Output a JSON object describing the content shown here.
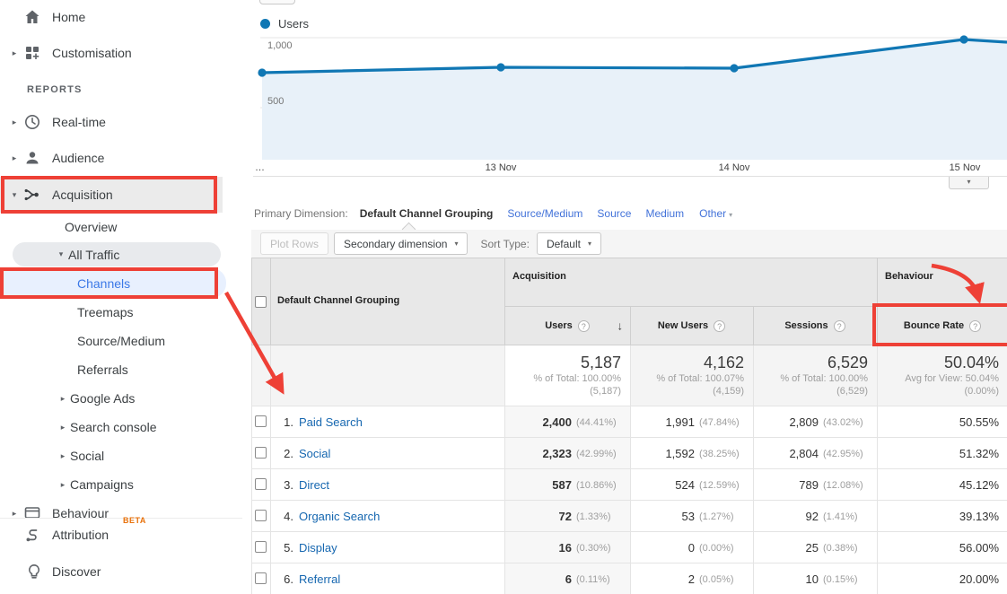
{
  "colors": {
    "annotation_red": "#ee4036",
    "chart_line_blue": "#1077b4",
    "chart_fill_blue": "#e8f1f9",
    "link_blue": "#4272d9",
    "table_link_blue": "#1667b0",
    "sidebar_selected_blue": "#3b78e7",
    "beta_orange": "#e8710a"
  },
  "icons": {
    "caret_right": "▸",
    "caret_down": "▾",
    "dropdown_caret": "▾",
    "sort_desc": "↓",
    "help": "?"
  },
  "sidebar": {
    "reports_label": "REPORTS",
    "beta_label": "BETA",
    "items": [
      {
        "label": "Home",
        "icon": "home-icon"
      },
      {
        "label": "Customisation",
        "icon": "customisation-icon"
      },
      {
        "label": "Real-time",
        "icon": "realtime-icon"
      },
      {
        "label": "Audience",
        "icon": "audience-icon"
      },
      {
        "label": "Acquisition",
        "icon": "acquisition-icon",
        "selected": true,
        "expanded": true
      },
      {
        "label": "Overview"
      },
      {
        "label": "All Traffic",
        "expanded": true
      },
      {
        "label": "Channels",
        "selected": true
      },
      {
        "label": "Treemaps"
      },
      {
        "label": "Source/Medium"
      },
      {
        "label": "Referrals"
      },
      {
        "label": "Google Ads"
      },
      {
        "label": "Search console"
      },
      {
        "label": "Social"
      },
      {
        "label": "Campaigns"
      },
      {
        "label": "Behaviour",
        "icon": "behaviour-icon"
      },
      {
        "label": "Attribution",
        "icon": "attribution-icon",
        "badge": "BETA"
      },
      {
        "label": "Discover",
        "icon": "discover-icon"
      }
    ]
  },
  "chart": {
    "legend": "Users",
    "y_ticks": [
      "1,000",
      "500"
    ],
    "x_ticks": [
      "…",
      "13 Nov",
      "14 Nov",
      "15 Nov"
    ]
  },
  "chart_data": {
    "type": "line",
    "title": "Users",
    "series": [
      {
        "name": "Users",
        "x": [
          "…",
          "13 Nov",
          "14 Nov",
          "15 Nov"
        ],
        "values": [
          750,
          790,
          780,
          990
        ]
      }
    ],
    "ylim": [
      380,
      1080
    ],
    "yticks": [
      500,
      1000
    ],
    "grid": true,
    "legend_position": "top-left",
    "notes": "values estimated from gridlines at 500 and 1,000; line continues past 15 Nov to plot edge at ~975"
  },
  "primary_dimension": {
    "label": "Primary Dimension:",
    "selected": "Default Channel Grouping",
    "options": [
      "Source/Medium",
      "Source",
      "Medium"
    ],
    "other_label": "Other"
  },
  "toolbar": {
    "plot_rows": "Plot Rows",
    "secondary_dimension": "Secondary dimension",
    "sort_type_label": "Sort Type:",
    "sort_default": "Default"
  },
  "table": {
    "dimension_header": "Default Channel Grouping",
    "group_acquisition": "Acquisition",
    "group_behaviour": "Behaviour",
    "col_users": "Users",
    "col_new_users": "New Users",
    "col_sessions": "Sessions",
    "col_bounce_rate": "Bounce Rate",
    "summary": {
      "users": "5,187",
      "users_sub1": "% of Total: 100.00%",
      "users_sub2": "(5,187)",
      "new_users": "4,162",
      "new_users_sub1": "% of Total: 100.07%",
      "new_users_sub2": "(4,159)",
      "sessions": "6,529",
      "sessions_sub1": "% of Total: 100.00%",
      "sessions_sub2": "(6,529)",
      "bounce_rate": "50.04%",
      "bounce_rate_sub1": "Avg for View: 50.04%",
      "bounce_rate_sub2": "(0.00%)"
    },
    "rows": [
      {
        "num": "1.",
        "channel": "Paid Search",
        "users": "2,400",
        "users_pct": "(44.41%)",
        "new_users": "1,991",
        "new_users_pct": "(47.84%)",
        "sessions": "2,809",
        "sessions_pct": "(43.02%)",
        "bounce_rate": "50.55%"
      },
      {
        "num": "2.",
        "channel": "Social",
        "users": "2,323",
        "users_pct": "(42.99%)",
        "new_users": "1,592",
        "new_users_pct": "(38.25%)",
        "sessions": "2,804",
        "sessions_pct": "(42.95%)",
        "bounce_rate": "51.32%"
      },
      {
        "num": "3.",
        "channel": "Direct",
        "users": "587",
        "users_pct": "(10.86%)",
        "new_users": "524",
        "new_users_pct": "(12.59%)",
        "sessions": "789",
        "sessions_pct": "(12.08%)",
        "bounce_rate": "45.12%"
      },
      {
        "num": "4.",
        "channel": "Organic Search",
        "users": "72",
        "users_pct": "(1.33%)",
        "new_users": "53",
        "new_users_pct": "(1.27%)",
        "sessions": "92",
        "sessions_pct": "(1.41%)",
        "bounce_rate": "39.13%"
      },
      {
        "num": "5.",
        "channel": "Display",
        "users": "16",
        "users_pct": "(0.30%)",
        "new_users": "0",
        "new_users_pct": "(0.00%)",
        "sessions": "25",
        "sessions_pct": "(0.38%)",
        "bounce_rate": "56.00%"
      },
      {
        "num": "6.",
        "channel": "Referral",
        "users": "6",
        "users_pct": "(0.11%)",
        "new_users": "2",
        "new_users_pct": "(0.05%)",
        "sessions": "10",
        "sessions_pct": "(0.15%)",
        "bounce_rate": "20.00%"
      }
    ]
  }
}
